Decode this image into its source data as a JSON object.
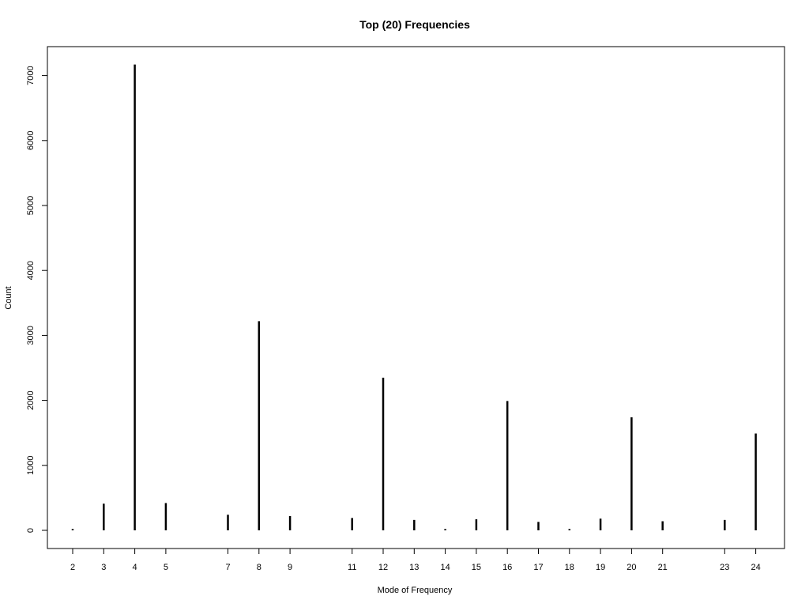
{
  "chart_data": {
    "type": "bar",
    "title": "Top (20) Frequencies",
    "xlabel": "Mode of Frequency",
    "ylabel": "Count",
    "ylim": [
      0,
      7700
    ],
    "xlim": [
      1.5,
      24.9
    ],
    "yticks": [
      0,
      1000,
      2000,
      3000,
      4000,
      5000,
      6000,
      7000
    ],
    "yticklabels": [
      "0",
      "1000",
      "2000",
      "3000",
      "4000",
      "5000",
      "6000",
      "7000"
    ],
    "categories": [
      "2",
      "3",
      "4",
      "5",
      "7",
      "8",
      "9",
      "11",
      "12",
      "13",
      "14",
      "15",
      "16",
      "17",
      "18",
      "19",
      "20",
      "21",
      "23",
      "24"
    ],
    "x": [
      2,
      3,
      4,
      5,
      7,
      8,
      9,
      11,
      12,
      13,
      14,
      15,
      16,
      17,
      18,
      19,
      20,
      21,
      23,
      24
    ],
    "values": [
      20,
      410,
      7170,
      420,
      240,
      3220,
      220,
      190,
      2350,
      160,
      20,
      170,
      1990,
      130,
      20,
      180,
      1740,
      140,
      160,
      1490
    ],
    "grid": false
  }
}
